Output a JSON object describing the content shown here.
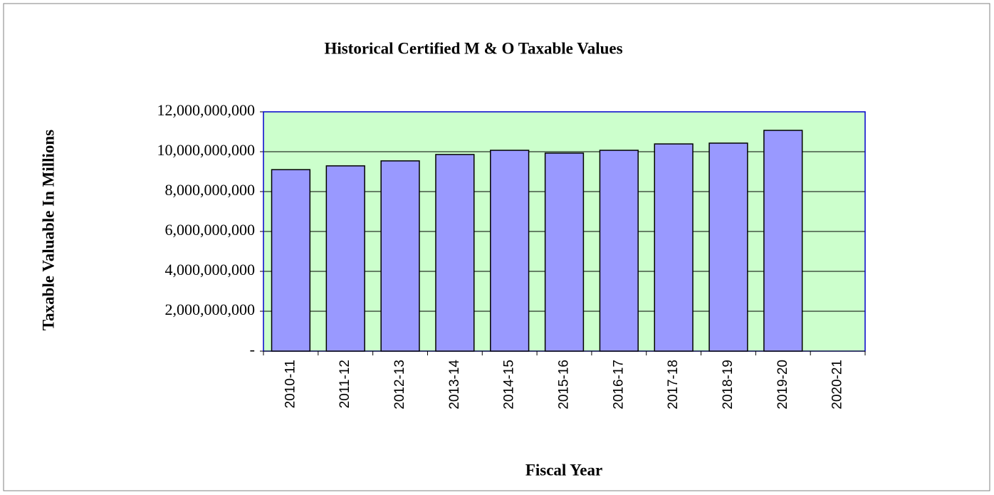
{
  "chart_data": {
    "type": "bar",
    "title": "Historical Certified M & O Taxable Values",
    "y_label": "Taxable Valuable In Millions",
    "x_label": "Fiscal Year",
    "categories": [
      "2010-11",
      "2011-12",
      "2012-13",
      "2013-14",
      "2014-15",
      "2015-16",
      "2016-17",
      "2017-18",
      "2018-19",
      "2019-20",
      "2020-21"
    ],
    "values": [
      9100000000,
      9290000000,
      9540000000,
      9860000000,
      10070000000,
      9930000000,
      10070000000,
      10390000000,
      10430000000,
      11070000000,
      null
    ],
    "color": "#9999ff",
    "plot_background": "#ccffcc",
    "ylim": [
      0,
      12000000000
    ],
    "yticks": [
      {
        "value": 0,
        "label": "-"
      },
      {
        "value": 2000000000,
        "label": "2,000,000,000"
      },
      {
        "value": 4000000000,
        "label": "4,000,000,000"
      },
      {
        "value": 6000000000,
        "label": "6,000,000,000"
      },
      {
        "value": 8000000000,
        "label": "8,000,000,000"
      },
      {
        "value": 10000000000,
        "label": "10,000,000,000"
      },
      {
        "value": 12000000000,
        "label": "12,000,000,000"
      }
    ],
    "grid": true
  }
}
